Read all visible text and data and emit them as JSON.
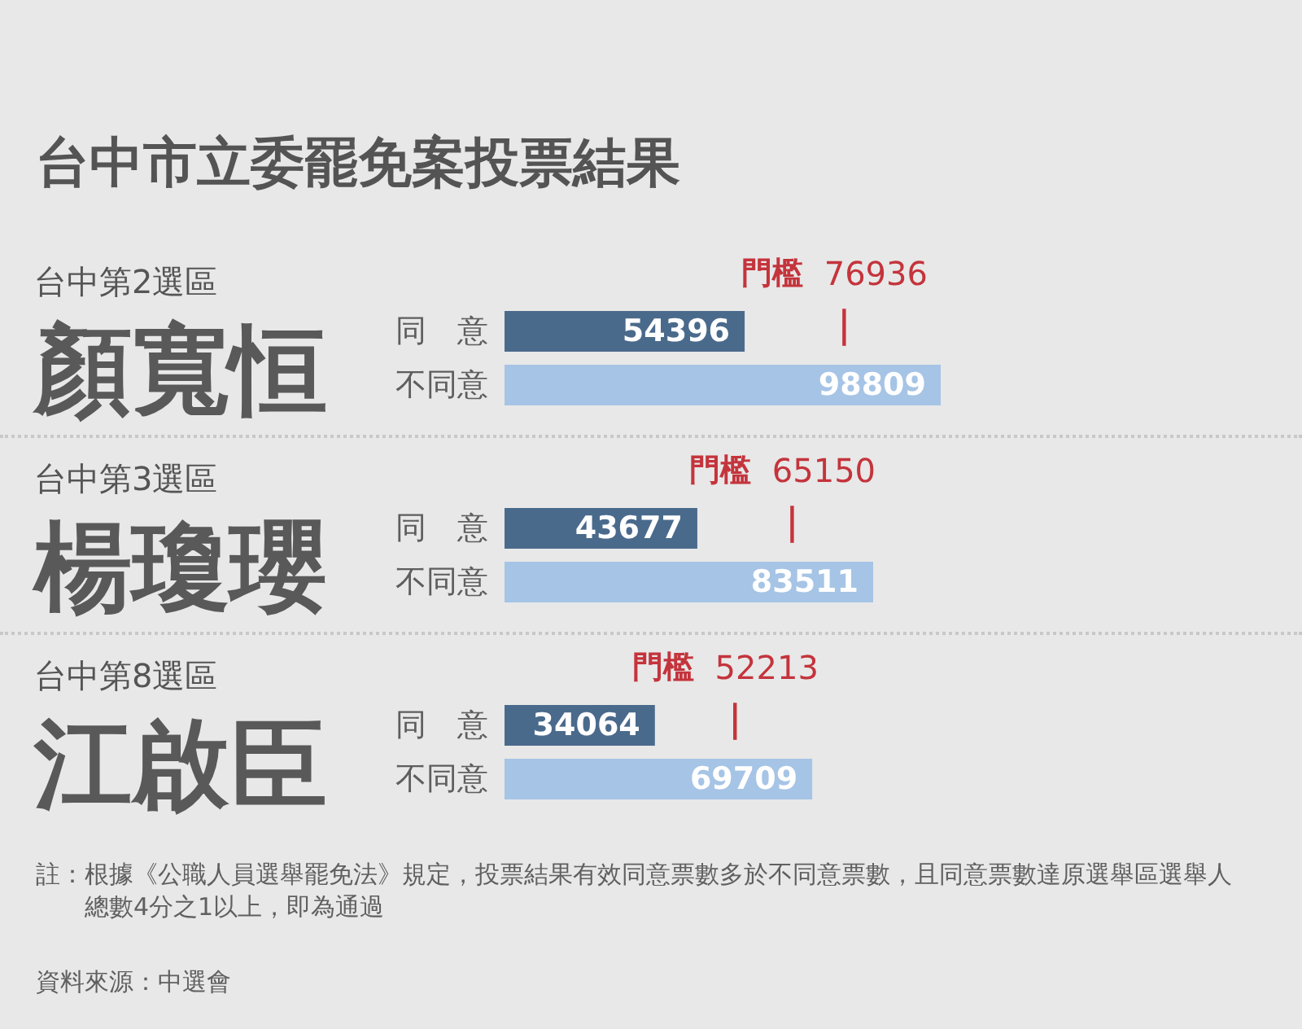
{
  "chart_data": [
    {
      "type": "bar",
      "orientation": "horizontal",
      "annotations": [
        "台中市立委罷免案投票結果"
      ],
      "title": "台中第2選區",
      "subtitle": "顏寬恒",
      "categories": [
        "同　意",
        "不同意"
      ],
      "values": [
        54396,
        98809
      ],
      "colors": [
        "#4a6a8c",
        "#a6c4e5"
      ],
      "data_labels": true,
      "ref_lines": [
        {
          "axis": "x",
          "value": 76936,
          "label": "門檻 76936",
          "color": "#c4343c"
        }
      ]
    },
    {
      "type": "bar",
      "orientation": "horizontal",
      "title": "台中第3選區",
      "subtitle": "楊瓊瓔",
      "categories": [
        "同　意",
        "不同意"
      ],
      "values": [
        43677,
        83511
      ],
      "colors": [
        "#4a6a8c",
        "#a6c4e5"
      ],
      "data_labels": true,
      "ref_lines": [
        {
          "axis": "x",
          "value": 65150,
          "label": "門檻 65150",
          "color": "#c4343c"
        }
      ]
    },
    {
      "type": "bar",
      "orientation": "horizontal",
      "title": "台中第8選區",
      "subtitle": "江啟臣",
      "categories": [
        "同　意",
        "不同意"
      ],
      "values": [
        34064,
        69709
      ],
      "colors": [
        "#4a6a8c",
        "#a6c4e5"
      ],
      "data_labels": true,
      "ref_lines": [
        {
          "axis": "x",
          "value": 52213,
          "label": "門檻 52213",
          "color": "#c4343c"
        }
      ],
      "annotations": [
        "註：根據《公職人員選舉罷免法》規定，投票結果有效同意票數多於不同意票數，且同意票數達原選舉區選舉人總數4分之1以上，即為通過",
        "資料來源：中選會"
      ]
    }
  ]
}
